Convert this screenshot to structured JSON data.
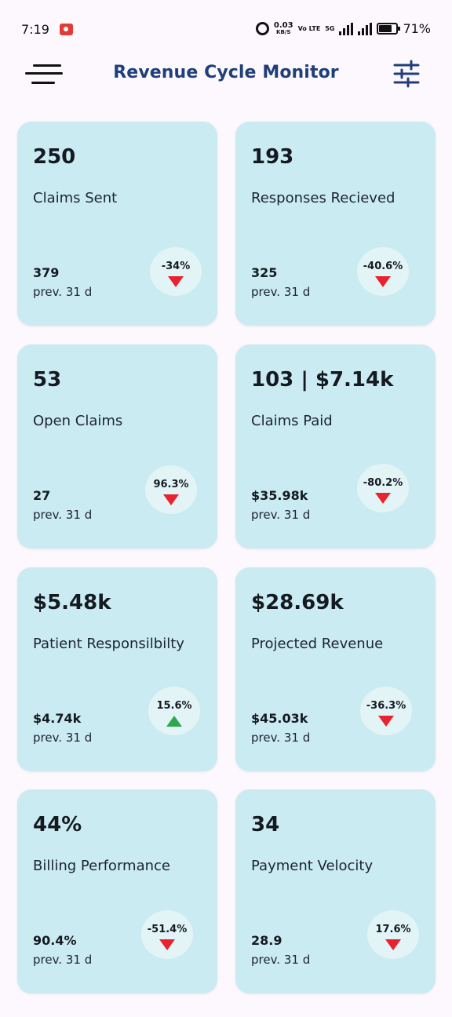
{
  "status_bar": {
    "time": "7:19",
    "net_speed": "0.03",
    "net_unit": "KB/S",
    "lte": "Vo LTE",
    "network": "5G",
    "battery": "71%"
  },
  "header": {
    "title": "Revenue Cycle Monitor",
    "menu_icon": "hamburger-menu-icon",
    "filter_icon": "sliders-filter-icon"
  },
  "colors": {
    "card_bg": "#c9ebf1",
    "badge_bg": "#e3f4f7",
    "title": "#1f3e7a",
    "down": "#e8222e",
    "up": "#2ea84f"
  },
  "cards": [
    {
      "value": "250",
      "label": "Claims Sent",
      "prev_value": "379",
      "prev_label": "prev. 31 d",
      "change": "-34%",
      "trend": "down"
    },
    {
      "value": "193",
      "label": "Responses Recieved",
      "prev_value": "325",
      "prev_label": "prev. 31 d",
      "change": "-40.6%",
      "trend": "down"
    },
    {
      "value": "53",
      "label": "Open Claims",
      "prev_value": "27",
      "prev_label": "prev. 31 d",
      "change": "96.3%",
      "trend": "down"
    },
    {
      "value": "103 | $7.14k",
      "label": "Claims Paid",
      "prev_value": "$35.98k",
      "prev_label": "prev. 31 d",
      "change": "-80.2%",
      "trend": "down"
    },
    {
      "value": "$5.48k",
      "label": "Patient Responsilbilty",
      "prev_value": "$4.74k",
      "prev_label": "prev. 31 d",
      "change": "15.6%",
      "trend": "up"
    },
    {
      "value": "$28.69k",
      "label": "Projected Revenue",
      "prev_value": "$45.03k",
      "prev_label": "prev. 31 d",
      "change": "-36.3%",
      "trend": "down"
    },
    {
      "value": "44%",
      "label": "Billing Performance",
      "prev_value": "90.4%",
      "prev_label": "prev. 31 d",
      "change": "-51.4%",
      "trend": "down"
    },
    {
      "value": "34",
      "label": "Payment Velocity",
      "prev_value": "28.9",
      "prev_label": "prev. 31 d",
      "change": "17.6%",
      "trend": "down"
    }
  ]
}
